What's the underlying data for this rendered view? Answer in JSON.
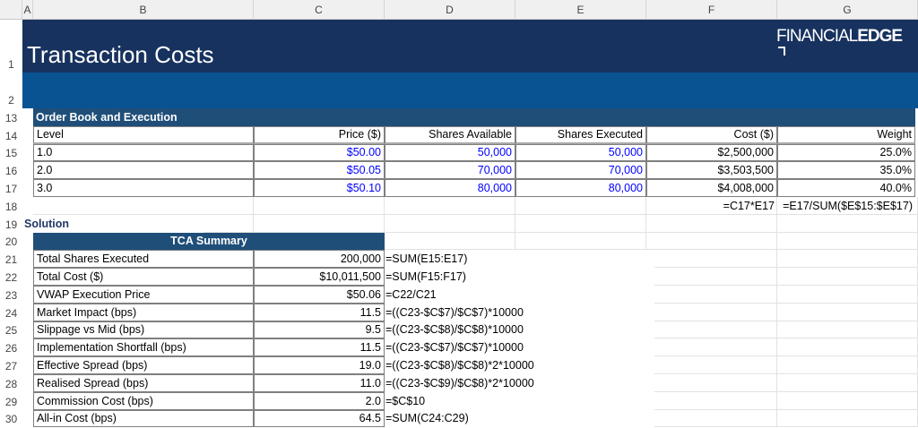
{
  "columns": [
    "A",
    "B",
    "C",
    "D",
    "E",
    "F",
    "G"
  ],
  "title": "Transaction Costs",
  "logo": {
    "light": "FINANCIAL",
    "bold": "EDGE"
  },
  "colors": {
    "title_bg": "#17325e",
    "band_bg": "#0a5393",
    "section_bg": "#1f4e79",
    "input": "#0000ff"
  },
  "row_numbers": [
    "1",
    "2",
    "13",
    "14",
    "15",
    "16",
    "17",
    "18",
    "19",
    "20",
    "21",
    "22",
    "23",
    "24",
    "25",
    "26",
    "27",
    "28",
    "29",
    "30"
  ],
  "order_book": {
    "heading": "Order Book and Execution",
    "headers": [
      "Level",
      "Price ($)",
      "Shares Available",
      "Shares Executed",
      "Cost ($)",
      "Weight"
    ],
    "rows": [
      [
        "1.0",
        "$50.00",
        "50,000",
        "50,000",
        "$2,500,000",
        "25.0%"
      ],
      [
        "2.0",
        "$50.05",
        "70,000",
        "70,000",
        "$3,503,500",
        "35.0%"
      ],
      [
        "3.0",
        "$50.10",
        "80,000",
        "80,000",
        "$4,008,000",
        "40.0%"
      ]
    ],
    "formula_notes": [
      "=C17*E17",
      "=E17/SUM($E$15:$E$17)"
    ]
  },
  "solution_label": "Solution",
  "tca": {
    "heading": "TCA Summary",
    "rows": [
      [
        "Total Shares Executed",
        "200,000",
        "=SUM(E15:E17)"
      ],
      [
        "Total Cost ($)",
        "$10,011,500",
        "=SUM(F15:F17)"
      ],
      [
        "VWAP Execution Price",
        "$50.06",
        "=C22/C21"
      ],
      [
        "Market Impact (bps)",
        "11.5",
        "=((C23-$C$7)/$C$7)*10000"
      ],
      [
        "Slippage vs Mid (bps)",
        "9.5",
        "=((C23-$C$8)/$C$8)*10000"
      ],
      [
        "Implementation Shortfall (bps)",
        "11.5",
        "=((C23-$C$7)/$C$7)*10000"
      ],
      [
        "Effective Spread (bps)",
        "19.0",
        "=((C23-$C$8)/$C$8)*2*10000"
      ],
      [
        "Realised Spread (bps)",
        "11.0",
        "=((C23-$C$9)/$C$8)*2*10000"
      ],
      [
        "Commission Cost (bps)",
        "2.0",
        "=$C$10"
      ],
      [
        "All-in Cost (bps)",
        "64.5",
        "=SUM(C24:C29)"
      ]
    ]
  }
}
